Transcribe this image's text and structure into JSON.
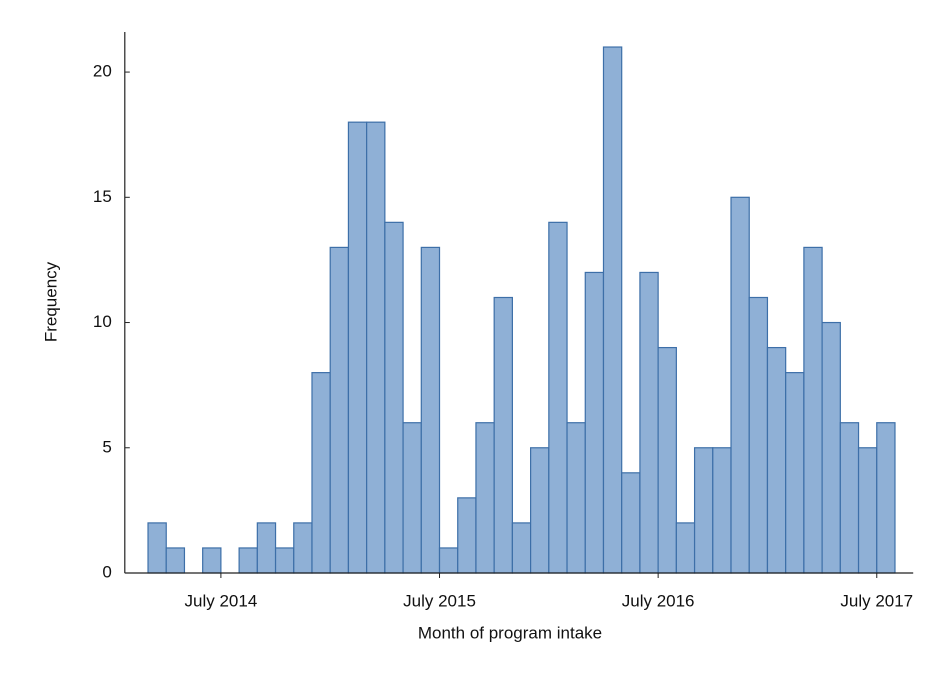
{
  "chart_data": {
    "type": "histogram",
    "x_label": "Month of program intake",
    "y_label": "Frequency",
    "bins": [
      "2014-03",
      "2014-04",
      "2014-05",
      "2014-06",
      "2014-07",
      "2014-08",
      "2014-09",
      "2014-10",
      "2014-11",
      "2014-12",
      "2015-01",
      "2015-02",
      "2015-03",
      "2015-04",
      "2015-05",
      "2015-06",
      "2015-07",
      "2015-08",
      "2015-09",
      "2015-10",
      "2015-11",
      "2015-12",
      "2016-01",
      "2016-02",
      "2016-03",
      "2016-04",
      "2016-05",
      "2016-06",
      "2016-07",
      "2016-08",
      "2016-09",
      "2016-10",
      "2016-11",
      "2016-12",
      "2017-01",
      "2017-02",
      "2017-03",
      "2017-04",
      "2017-05",
      "2017-06",
      "2017-07",
      "2017-08"
    ],
    "values": [
      2,
      1,
      0,
      1,
      0,
      1,
      2,
      1,
      2,
      8,
      13,
      18,
      18,
      14,
      6,
      13,
      1,
      3,
      6,
      11,
      2,
      5,
      14,
      6,
      12,
      21,
      4,
      12,
      9,
      2,
      5,
      5,
      15,
      11,
      9,
      8,
      13,
      10,
      6,
      5,
      6
    ],
    "color": "#8fb0d6",
    "edge_color": "#3d6fa8",
    "xlim": [
      "2014-02",
      "2017-09"
    ],
    "xticks": [
      {
        "value": "2014-07",
        "label": "July 2014"
      },
      {
        "value": "2015-07",
        "label": "July 2015"
      },
      {
        "value": "2016-07",
        "label": "July 2016"
      },
      {
        "value": "2017-07",
        "label": "July 2017"
      }
    ],
    "ylim": [
      0,
      21.6
    ],
    "yticks": [
      0,
      5,
      10,
      15,
      20
    ]
  }
}
